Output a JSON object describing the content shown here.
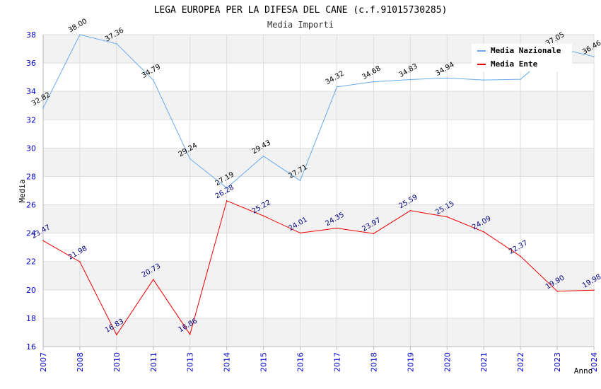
{
  "chart_data": {
    "type": "line",
    "title": "LEGA EUROPEA PER LA DIFESA DEL CANE (c.f.91015730285)",
    "subtitle": "Media Importi",
    "xlabel": "Anno",
    "ylabel": "Media",
    "ylim": [
      16,
      38
    ],
    "yticks": [
      "16",
      "18",
      "20",
      "22",
      "24",
      "26",
      "28",
      "30",
      "32",
      "34",
      "36",
      "38"
    ],
    "categories": [
      "2007",
      "2008",
      "2010",
      "2011",
      "2013",
      "2014",
      "2015",
      "2016",
      "2017",
      "2018",
      "2019",
      "2020",
      "2021",
      "2022",
      "2023",
      "2024"
    ],
    "series": [
      {
        "name": "Media Nazionale",
        "color": "#66aaee",
        "values": [
          32.82,
          38.0,
          37.36,
          34.79,
          29.24,
          27.19,
          29.43,
          27.71,
          34.32,
          34.68,
          34.83,
          34.94,
          34.8,
          34.85,
          37.05,
          36.46
        ],
        "labels": [
          "32.82",
          "38.00",
          "37.36",
          "34.79",
          "29.24",
          "27.19",
          "29.43",
          "27.71",
          "34.32",
          "34.68",
          "34.83",
          "34.94",
          "",
          "",
          "37.05",
          "36.46"
        ]
      },
      {
        "name": "Media Ente",
        "color": "#ee0000",
        "values": [
          23.47,
          21.98,
          16.83,
          20.73,
          16.86,
          26.28,
          25.22,
          24.01,
          24.35,
          23.97,
          25.59,
          25.15,
          24.09,
          22.37,
          19.9,
          19.98
        ],
        "labels": [
          "23.47",
          "21.98",
          "16.83",
          "20.73",
          "16.86",
          "26.28",
          "25.22",
          "24.01",
          "24.35",
          "23.97",
          "25.59",
          "25.15",
          "24.09",
          "22.37",
          "19.90",
          "19.98"
        ]
      }
    ],
    "legend_position": "top-right"
  }
}
